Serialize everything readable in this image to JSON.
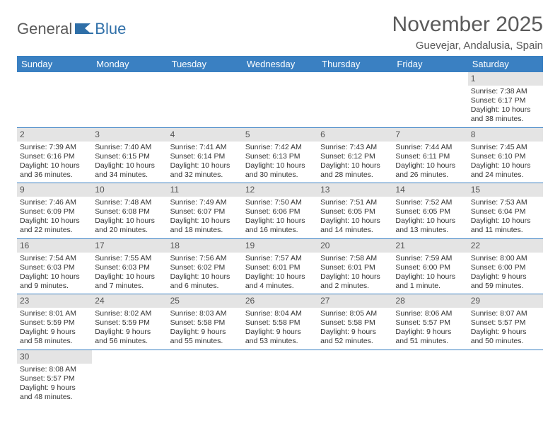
{
  "logo": {
    "text1": "General",
    "text2": "Blue"
  },
  "title": "November 2025",
  "location": "Guevejar, Andalusia, Spain",
  "colors": {
    "header_bg": "#3a80c2",
    "header_fg": "#ffffff",
    "daynum_bg": "#e4e4e4",
    "rule": "#3a80c2",
    "text": "#5a5a5a"
  },
  "weekdays": [
    "Sunday",
    "Monday",
    "Tuesday",
    "Wednesday",
    "Thursday",
    "Friday",
    "Saturday"
  ],
  "weeks": [
    [
      null,
      null,
      null,
      null,
      null,
      null,
      {
        "n": "1",
        "sr": "7:38 AM",
        "ss": "6:17 PM",
        "dl": "10 hours and 38 minutes."
      }
    ],
    [
      {
        "n": "2",
        "sr": "7:39 AM",
        "ss": "6:16 PM",
        "dl": "10 hours and 36 minutes."
      },
      {
        "n": "3",
        "sr": "7:40 AM",
        "ss": "6:15 PM",
        "dl": "10 hours and 34 minutes."
      },
      {
        "n": "4",
        "sr": "7:41 AM",
        "ss": "6:14 PM",
        "dl": "10 hours and 32 minutes."
      },
      {
        "n": "5",
        "sr": "7:42 AM",
        "ss": "6:13 PM",
        "dl": "10 hours and 30 minutes."
      },
      {
        "n": "6",
        "sr": "7:43 AM",
        "ss": "6:12 PM",
        "dl": "10 hours and 28 minutes."
      },
      {
        "n": "7",
        "sr": "7:44 AM",
        "ss": "6:11 PM",
        "dl": "10 hours and 26 minutes."
      },
      {
        "n": "8",
        "sr": "7:45 AM",
        "ss": "6:10 PM",
        "dl": "10 hours and 24 minutes."
      }
    ],
    [
      {
        "n": "9",
        "sr": "7:46 AM",
        "ss": "6:09 PM",
        "dl": "10 hours and 22 minutes."
      },
      {
        "n": "10",
        "sr": "7:48 AM",
        "ss": "6:08 PM",
        "dl": "10 hours and 20 minutes."
      },
      {
        "n": "11",
        "sr": "7:49 AM",
        "ss": "6:07 PM",
        "dl": "10 hours and 18 minutes."
      },
      {
        "n": "12",
        "sr": "7:50 AM",
        "ss": "6:06 PM",
        "dl": "10 hours and 16 minutes."
      },
      {
        "n": "13",
        "sr": "7:51 AM",
        "ss": "6:05 PM",
        "dl": "10 hours and 14 minutes."
      },
      {
        "n": "14",
        "sr": "7:52 AM",
        "ss": "6:05 PM",
        "dl": "10 hours and 13 minutes."
      },
      {
        "n": "15",
        "sr": "7:53 AM",
        "ss": "6:04 PM",
        "dl": "10 hours and 11 minutes."
      }
    ],
    [
      {
        "n": "16",
        "sr": "7:54 AM",
        "ss": "6:03 PM",
        "dl": "10 hours and 9 minutes."
      },
      {
        "n": "17",
        "sr": "7:55 AM",
        "ss": "6:03 PM",
        "dl": "10 hours and 7 minutes."
      },
      {
        "n": "18",
        "sr": "7:56 AM",
        "ss": "6:02 PM",
        "dl": "10 hours and 6 minutes."
      },
      {
        "n": "19",
        "sr": "7:57 AM",
        "ss": "6:01 PM",
        "dl": "10 hours and 4 minutes."
      },
      {
        "n": "20",
        "sr": "7:58 AM",
        "ss": "6:01 PM",
        "dl": "10 hours and 2 minutes."
      },
      {
        "n": "21",
        "sr": "7:59 AM",
        "ss": "6:00 PM",
        "dl": "10 hours and 1 minute."
      },
      {
        "n": "22",
        "sr": "8:00 AM",
        "ss": "6:00 PM",
        "dl": "9 hours and 59 minutes."
      }
    ],
    [
      {
        "n": "23",
        "sr": "8:01 AM",
        "ss": "5:59 PM",
        "dl": "9 hours and 58 minutes."
      },
      {
        "n": "24",
        "sr": "8:02 AM",
        "ss": "5:59 PM",
        "dl": "9 hours and 56 minutes."
      },
      {
        "n": "25",
        "sr": "8:03 AM",
        "ss": "5:58 PM",
        "dl": "9 hours and 55 minutes."
      },
      {
        "n": "26",
        "sr": "8:04 AM",
        "ss": "5:58 PM",
        "dl": "9 hours and 53 minutes."
      },
      {
        "n": "27",
        "sr": "8:05 AM",
        "ss": "5:58 PM",
        "dl": "9 hours and 52 minutes."
      },
      {
        "n": "28",
        "sr": "8:06 AM",
        "ss": "5:57 PM",
        "dl": "9 hours and 51 minutes."
      },
      {
        "n": "29",
        "sr": "8:07 AM",
        "ss": "5:57 PM",
        "dl": "9 hours and 50 minutes."
      }
    ],
    [
      {
        "n": "30",
        "sr": "8:08 AM",
        "ss": "5:57 PM",
        "dl": "9 hours and 48 minutes."
      },
      null,
      null,
      null,
      null,
      null,
      null
    ]
  ],
  "labels": {
    "sunrise": "Sunrise: ",
    "sunset": "Sunset: ",
    "daylight": "Daylight: "
  }
}
